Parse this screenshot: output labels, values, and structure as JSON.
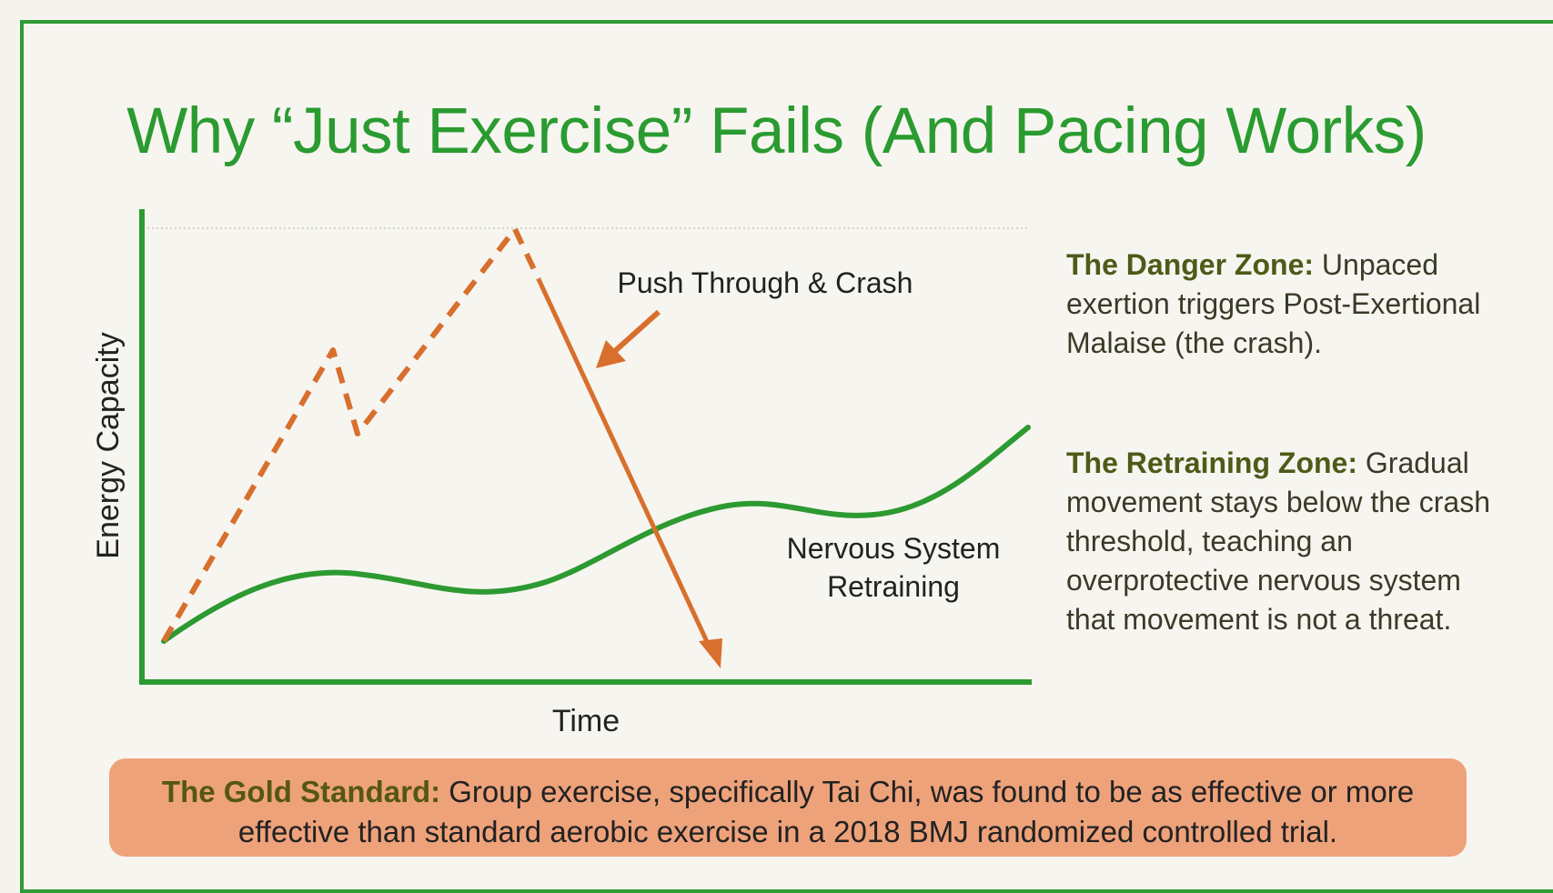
{
  "title": "Why “Just Exercise” Fails (And Pacing Works)",
  "chart_data": {
    "type": "line",
    "xlabel": "Time",
    "ylabel": "Energy Capacity",
    "annotations": {
      "push_label": "Push Through & Crash",
      "nervous_line1": "Nervous System",
      "nervous_line2": "Retraining"
    },
    "series": [
      {
        "name": "Push Through & Crash",
        "style": "dashed-then-arrow",
        "color": "#d86f2d"
      },
      {
        "name": "Nervous System Retraining",
        "style": "solid",
        "color": "#2d9a31"
      }
    ],
    "grid": false
  },
  "danger_zone": {
    "heading": "The Danger Zone:",
    "text": " Unpaced exertion triggers Post-Exertional Malaise (the crash)."
  },
  "retraining_zone": {
    "heading": "The Retraining Zone:",
    "text": " Gradual movement stays below the crash threshold, teaching an overprotective nervous system that movement is not a threat."
  },
  "gold_standard": {
    "heading": "The Gold Standard:",
    "text": " Group exercise, specifically Tai Chi, was found to be as effective or more effective than standard aerobic exercise in a 2018 BMJ randomized controlled trial."
  },
  "colors": {
    "green": "#2d9a31",
    "orange": "#d86f2d",
    "gold_box": "#eea27a"
  }
}
